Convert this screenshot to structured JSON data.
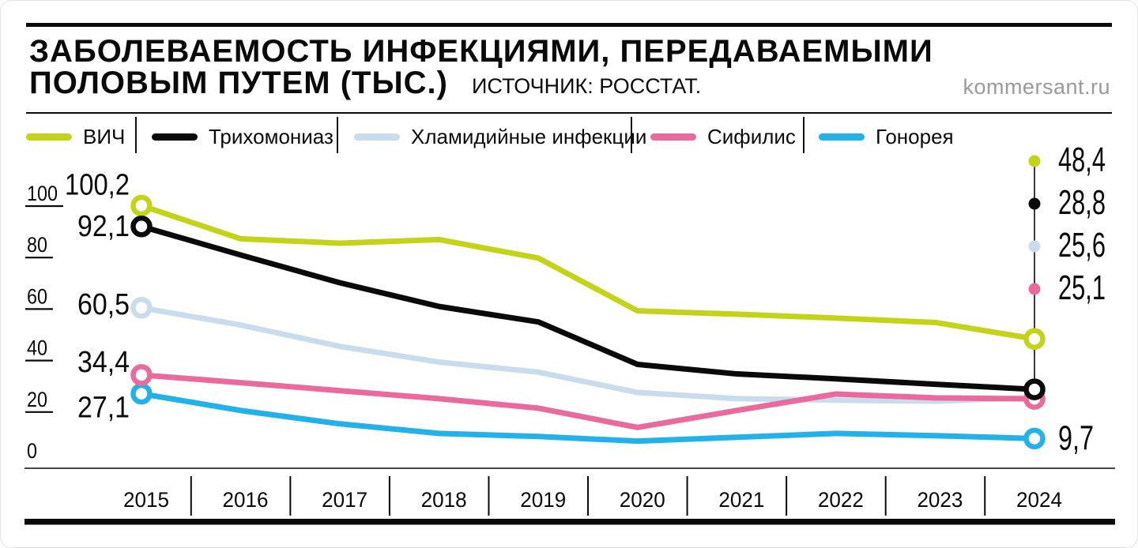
{
  "header": {
    "title_line1": "ЗАБОЛЕВАЕМОСТЬ ИНФЕКЦИЯМИ, ПЕРЕДАВАЕМЫМИ",
    "title_line2": "ПОЛОВЫМ ПУТЕМ (ТЫС.)",
    "source": "ИСТОЧНИК: РОССТАТ.",
    "watermark": "kommersant.ru"
  },
  "colors": {
    "text": "#0a0a0a",
    "muted": "#9a9a9a",
    "hiv": "#c3d417",
    "trichomoniasis": "#0a0a0a",
    "chlamydia": "#c9dcee",
    "syphilis": "#ea6a9e",
    "gonorrhea": "#22b2e8"
  },
  "legend": {
    "items": [
      {
        "label": "ВИЧ",
        "color": "#c3d417"
      },
      {
        "label": "Трихомониаз",
        "color": "#0a0a0a"
      },
      {
        "label": "Хламидийные инфекции",
        "color": "#c9dcee"
      },
      {
        "label": "Сифилис",
        "color": "#ea6a9e"
      },
      {
        "label": "Гонорея",
        "color": "#22b2e8"
      }
    ]
  },
  "chart_data": {
    "type": "line",
    "title": "Заболеваемость инфекциями, передаваемыми половым путем (тыс.)",
    "x": [
      2015,
      2016,
      2017,
      2018,
      2019,
      2020,
      2021,
      2022,
      2023,
      2024
    ],
    "ylim": [
      0,
      100
    ],
    "yticks": [
      100,
      80,
      60,
      40,
      20,
      0
    ],
    "grid": false,
    "legend_position": "top",
    "series": [
      {
        "name": "ВИЧ",
        "color": "#c3d417",
        "values": [
          100.2,
          87.3,
          85.6,
          87.0,
          79.8,
          59.3,
          58.0,
          56.5,
          54.8,
          48.4
        ],
        "start_label": "100,2",
        "end_label": "48,4"
      },
      {
        "name": "Трихомониаз",
        "color": "#0a0a0a",
        "values": [
          92.1,
          81.0,
          70.2,
          61.0,
          55.0,
          38.5,
          34.8,
          32.9,
          30.8,
          28.8
        ],
        "start_label": "92,1",
        "end_label": "28,8"
      },
      {
        "name": "Хламидийные инфекции",
        "color": "#c9dcee",
        "values": [
          60.5,
          53.8,
          45.5,
          39.4,
          35.5,
          27.6,
          25.2,
          24.6,
          24.2,
          25.6
        ],
        "start_label": "60,5",
        "end_label": "25,6"
      },
      {
        "name": "Сифилис",
        "color": "#ea6a9e",
        "values": [
          34.4,
          31.4,
          28.3,
          25.2,
          21.5,
          14.0,
          20.6,
          27.0,
          25.5,
          25.1
        ],
        "start_label": "34,4",
        "end_label": "25,1"
      },
      {
        "name": "Гонорея",
        "color": "#22b2e8",
        "values": [
          27.1,
          20.6,
          15.4,
          11.7,
          10.5,
          8.7,
          10.2,
          11.7,
          10.8,
          9.7
        ],
        "start_label": "27,1",
        "end_label": "9,7"
      }
    ]
  }
}
